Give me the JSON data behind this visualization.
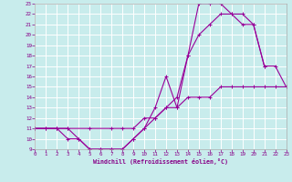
{
  "xlabel": "Windchill (Refroidissement éolien,°C)",
  "bg_color": "#c8ecec",
  "grid_color": "#ffffff",
  "line_color": "#990099",
  "xlim": [
    0,
    23
  ],
  "ylim": [
    9,
    23
  ],
  "yticks": [
    9,
    10,
    11,
    12,
    13,
    14,
    15,
    16,
    17,
    18,
    19,
    20,
    21,
    22,
    23
  ],
  "xticks": [
    0,
    1,
    2,
    3,
    4,
    5,
    6,
    7,
    8,
    9,
    10,
    11,
    12,
    13,
    14,
    15,
    16,
    17,
    18,
    19,
    20,
    21,
    22,
    23
  ],
  "curve1_x": [
    0,
    1,
    2,
    3,
    4,
    5,
    6,
    7,
    8,
    9,
    10,
    11,
    12,
    13,
    14,
    15,
    16,
    17,
    18,
    19,
    20,
    21
  ],
  "curve1_y": [
    11,
    11,
    11,
    10,
    10,
    9,
    9,
    9,
    9,
    10,
    11,
    13,
    16,
    13,
    18,
    23,
    23,
    23,
    22,
    21,
    21,
    17
  ],
  "curve2_x": [
    0,
    1,
    2,
    3,
    4,
    5,
    6,
    7,
    8,
    9,
    10,
    11,
    12,
    13,
    14,
    15,
    16,
    17,
    18,
    19,
    20,
    21,
    22,
    23
  ],
  "curve2_y": [
    11,
    11,
    11,
    11,
    10,
    9,
    9,
    9,
    9,
    10,
    11,
    12,
    13,
    14,
    18,
    20,
    21,
    22,
    22,
    22,
    21,
    17,
    17,
    15
  ],
  "curve3_x": [
    0,
    2,
    3,
    5,
    7,
    8,
    9,
    10,
    11,
    12,
    13,
    14,
    15,
    16,
    17,
    18,
    19,
    20,
    21,
    22,
    23
  ],
  "curve3_y": [
    11,
    11,
    11,
    11,
    11,
    11,
    11,
    12,
    12,
    13,
    13,
    14,
    14,
    14,
    15,
    15,
    15,
    15,
    15,
    15,
    15
  ]
}
